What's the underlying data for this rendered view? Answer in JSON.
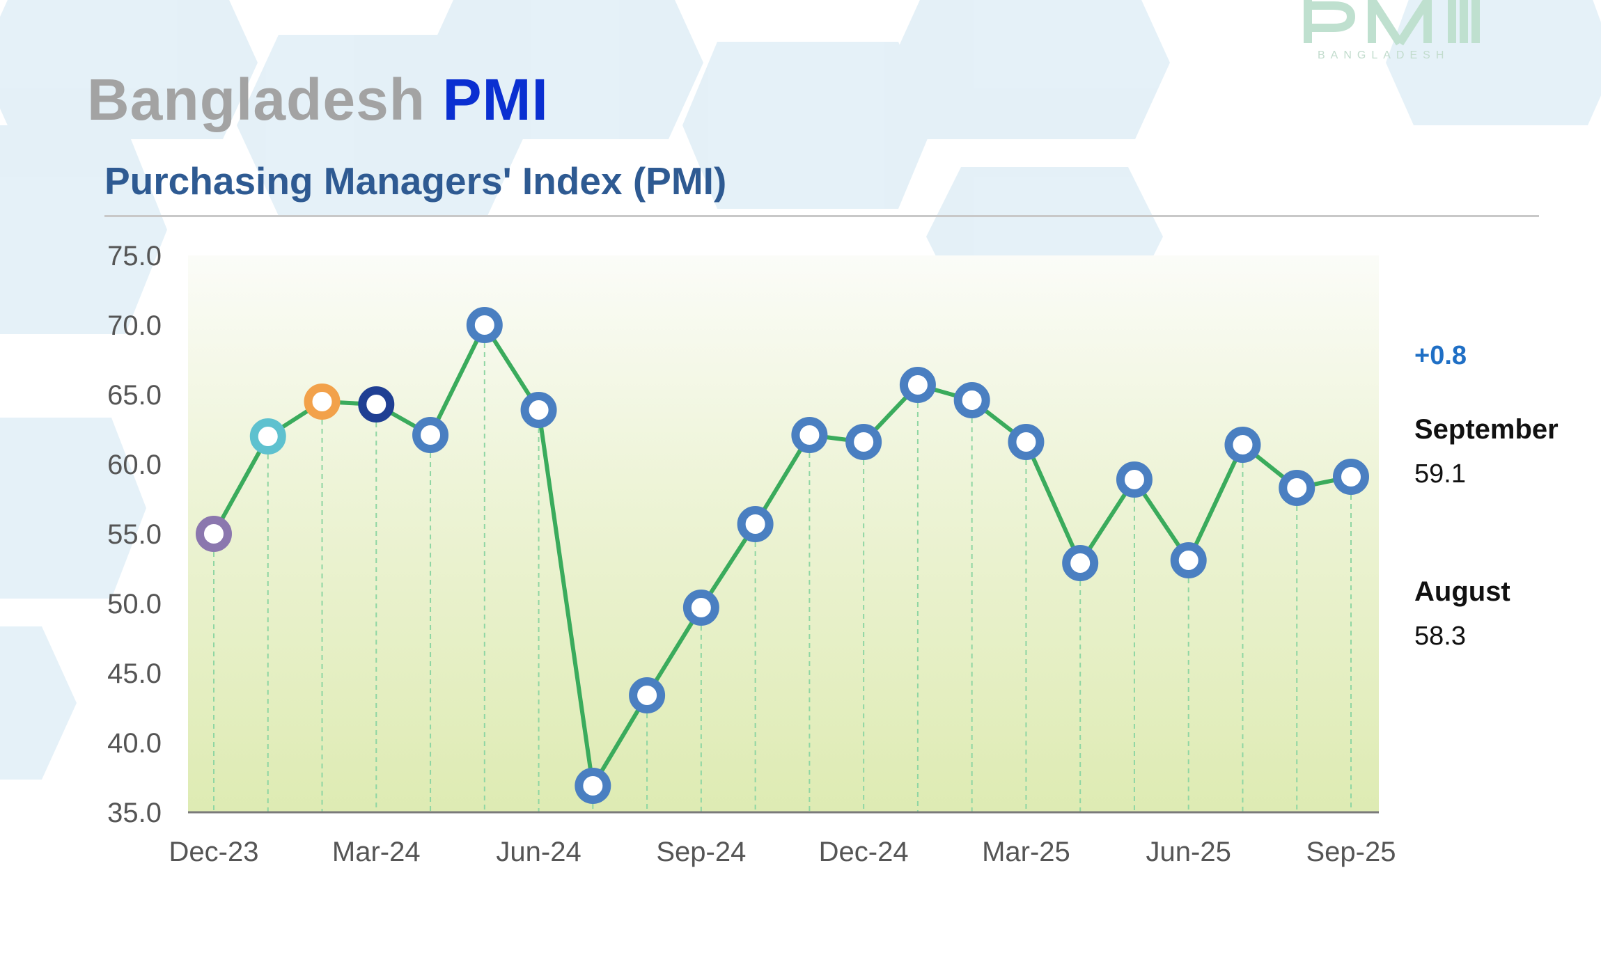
{
  "header": {
    "country": "Bangladesh",
    "brand": "PMI",
    "logo_word": "BANGLADESH"
  },
  "subtitle": "Purchasing Managers' Index (PMI)",
  "summary": {
    "change": "+0.8",
    "current_month": "September",
    "current_value": "59.1",
    "previous_month": "August",
    "previous_value": "58.3"
  },
  "colors": {
    "line": "#3aab5c",
    "marker": "#4a7fc1",
    "brand": "#0a2fd1",
    "subtitle": "#2e5a92"
  },
  "chart_data": {
    "type": "line",
    "title": "",
    "xlabel": "",
    "ylabel": "",
    "x": [
      "Dec-23",
      "Jan-24",
      "Feb-24",
      "Mar-24",
      "Apr-24",
      "May-24",
      "Jun-24",
      "Jul-24",
      "Aug-24",
      "Sep-24",
      "Oct-24",
      "Nov-24",
      "Dec-24",
      "Jan-25",
      "Feb-25",
      "Mar-25",
      "Apr-25",
      "May-25",
      "Jun-25",
      "Jul-25",
      "Aug-25",
      "Sep-25"
    ],
    "x_tick_labels": [
      "Dec-23",
      "Mar-24",
      "Jun-24",
      "Sep-24",
      "Dec-24",
      "Mar-25",
      "Jun-25",
      "Sep-25"
    ],
    "series": [
      {
        "values": [
          55.0,
          62.0,
          64.5,
          64.3,
          62.1,
          70.0,
          63.9,
          36.9,
          43.4,
          49.7,
          55.7,
          62.1,
          61.6,
          65.7,
          64.6,
          61.6,
          52.9,
          58.9,
          53.1,
          61.4,
          58.3,
          59.1
        ]
      }
    ],
    "marker_colors": [
      "#8b77ae",
      "#5ec1cf",
      "#f2a14a",
      "#1f3f93",
      "#4a7fc1",
      "#4a7fc1",
      "#4a7fc1",
      "#4a7fc1",
      "#4a7fc1",
      "#4a7fc1",
      "#4a7fc1",
      "#4a7fc1",
      "#4a7fc1",
      "#4a7fc1",
      "#4a7fc1",
      "#4a7fc1",
      "#4a7fc1",
      "#4a7fc1",
      "#4a7fc1",
      "#4a7fc1",
      "#4a7fc1",
      "#4a7fc1"
    ],
    "y_ticks": [
      "75.0",
      "70.0",
      "65.0",
      "60.0",
      "55.0",
      "50.0",
      "45.0",
      "40.0",
      "35.0"
    ],
    "ylim": [
      35,
      75
    ],
    "grid": false
  }
}
